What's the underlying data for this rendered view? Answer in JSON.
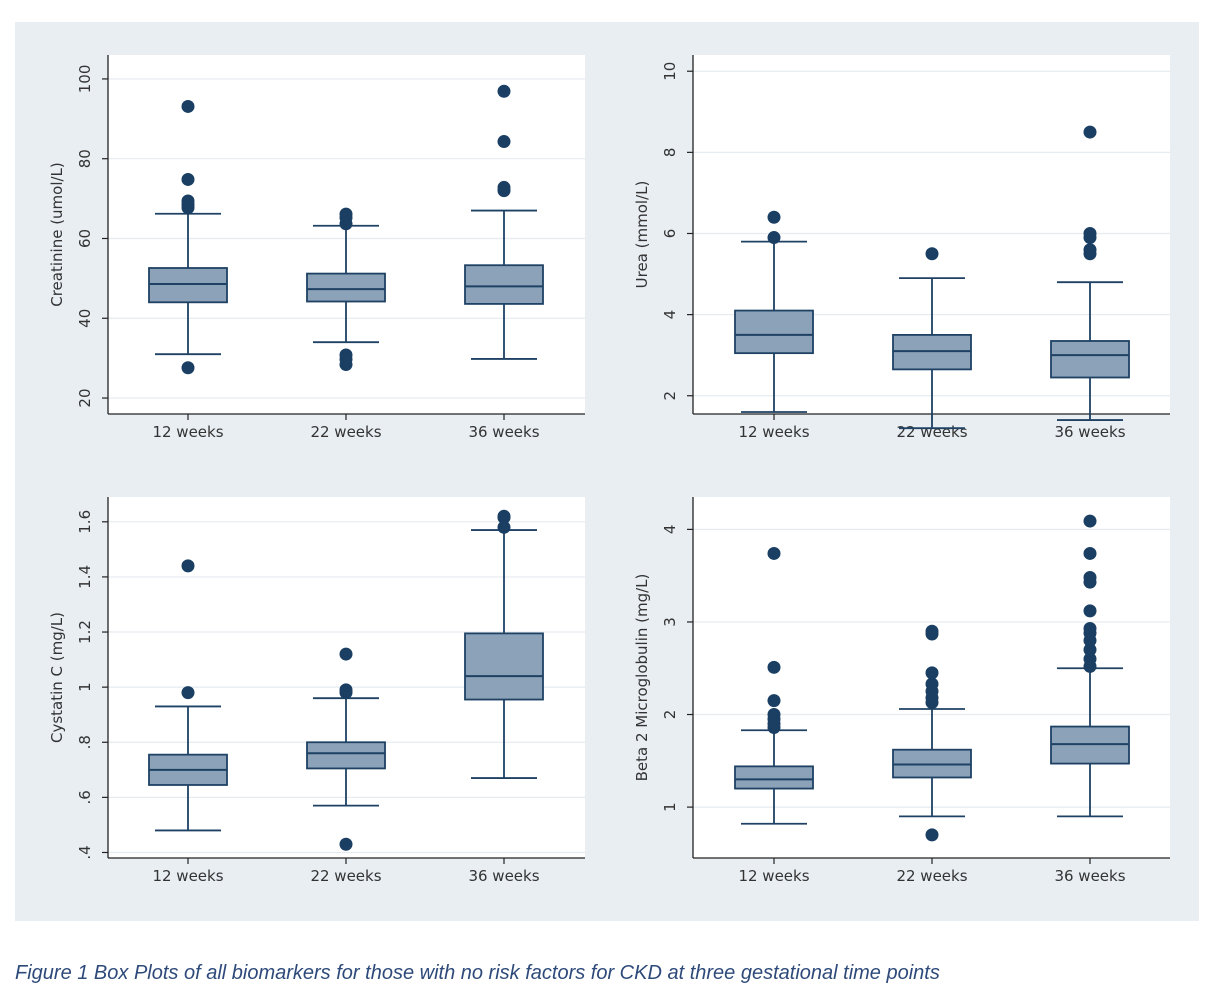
{
  "caption": "Figure 1 Box Plots of all biomarkers for those with no risk factors for CKD at three gestational time points",
  "colors": {
    "box_fill": "#8ba2b9",
    "line": "#1e4164",
    "outlier": "#1a3f63",
    "plot_bg": "#ffffff",
    "outer_bg": "#e9eef3",
    "grid": "#e6ebef"
  },
  "chart_data": [
    {
      "type": "box",
      "ylabel": "Creatinine (umol/L)",
      "categories": [
        "12 weeks",
        "22 weeks",
        "36 weeks"
      ],
      "ylim": [
        16,
        106
      ],
      "yticks": [
        20,
        40,
        60,
        80,
        100
      ],
      "ytick_labels": [
        "20",
        "40",
        "60",
        "80",
        "100"
      ],
      "boxes": [
        {
          "whisker_low": 31,
          "q1": 44,
          "median": 48.6,
          "q3": 52.6,
          "whisker_high": 66.2,
          "outliers": [
            27.6,
            67.7,
            68.5,
            69.4,
            74.8,
            93.1
          ]
        },
        {
          "whisker_low": 34,
          "q1": 44.2,
          "median": 47.3,
          "q3": 51.2,
          "whisker_high": 63.2,
          "outliers": [
            28.4,
            29.7,
            30.8,
            63.7,
            65.2,
            66.1
          ]
        },
        {
          "whisker_low": 29.8,
          "q1": 43.6,
          "median": 48,
          "q3": 53.3,
          "whisker_high": 67,
          "outliers": [
            72,
            72.8,
            84.3,
            96.9
          ]
        }
      ]
    },
    {
      "type": "box",
      "ylabel": "Urea (mmol/L)",
      "categories": [
        "12 weeks",
        "22 weeks",
        "36 weeks"
      ],
      "ylim": [
        1.55,
        10.4
      ],
      "yticks": [
        2,
        4,
        6,
        8,
        10
      ],
      "ytick_labels": [
        "2",
        "4",
        "6",
        "8",
        "10"
      ],
      "boxes": [
        {
          "whisker_low": 1.6,
          "q1": 3.05,
          "median": 3.5,
          "q3": 4.1,
          "whisker_high": 5.8,
          "outliers": [
            5.9,
            6.4
          ]
        },
        {
          "whisker_low": 1.2,
          "q1": 2.65,
          "median": 3.1,
          "q3": 3.5,
          "whisker_high": 4.9,
          "outliers": [
            5.5
          ]
        },
        {
          "whisker_low": 1.4,
          "q1": 2.45,
          "median": 3,
          "q3": 3.35,
          "whisker_high": 4.8,
          "outliers": [
            5.5,
            5.6,
            5.9,
            6,
            8.5
          ]
        }
      ]
    },
    {
      "type": "box",
      "ylabel": "Cystatin C (mg/L)",
      "categories": [
        "12 weeks",
        "22 weeks",
        "36 weeks"
      ],
      "ylim": [
        0.38,
        1.69
      ],
      "yticks": [
        0.4,
        0.6,
        0.8,
        1.0,
        1.2,
        1.4,
        1.6
      ],
      "ytick_labels": [
        ".4",
        ".6",
        ".8",
        "1",
        "1.2",
        "1.4",
        "1.6"
      ],
      "boxes": [
        {
          "whisker_low": 0.48,
          "q1": 0.645,
          "median": 0.7,
          "q3": 0.755,
          "whisker_high": 0.93,
          "outliers": [
            0.98,
            1.44
          ]
        },
        {
          "whisker_low": 0.57,
          "q1": 0.705,
          "median": 0.76,
          "q3": 0.8,
          "whisker_high": 0.96,
          "outliers": [
            0.43,
            0.98,
            0.99,
            1.12
          ]
        },
        {
          "whisker_low": 0.67,
          "q1": 0.955,
          "median": 1.04,
          "q3": 1.195,
          "whisker_high": 1.57,
          "outliers": [
            1.58,
            1.615,
            1.62
          ]
        }
      ]
    },
    {
      "type": "box",
      "ylabel": "Beta 2 Microglobulin (mg/L)",
      "categories": [
        "12 weeks",
        "22 weeks",
        "36 weeks"
      ],
      "ylim": [
        0.45,
        4.35
      ],
      "yticks": [
        1,
        2,
        3,
        4
      ],
      "ytick_labels": [
        "1",
        "2",
        "3",
        "4"
      ],
      "boxes": [
        {
          "whisker_low": 0.82,
          "q1": 1.2,
          "median": 1.3,
          "q3": 1.44,
          "whisker_high": 1.83,
          "outliers": [
            1.86,
            1.9,
            1.95,
            2,
            2.15,
            2.51,
            3.74
          ]
        },
        {
          "whisker_low": 0.9,
          "q1": 1.32,
          "median": 1.46,
          "q3": 1.62,
          "whisker_high": 2.06,
          "outliers": [
            0.7,
            2.13,
            2.18,
            2.25,
            2.33,
            2.45,
            2.87,
            2.9
          ]
        },
        {
          "whisker_low": 0.9,
          "q1": 1.47,
          "median": 1.68,
          "q3": 1.87,
          "whisker_high": 2.5,
          "outliers": [
            2.52,
            2.6,
            2.7,
            2.8,
            2.88,
            2.93,
            3.12,
            3.43,
            3.48,
            3.74,
            4.09
          ]
        }
      ]
    }
  ]
}
